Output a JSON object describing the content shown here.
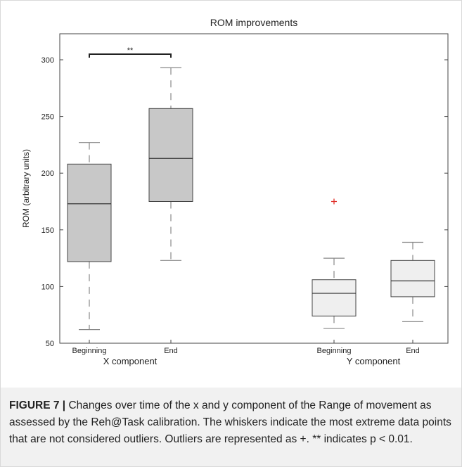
{
  "chart_data": {
    "type": "box",
    "title": "ROM improvements",
    "ylabel": "ROM (arbitrary units)",
    "xlabel": "",
    "ylim": [
      50,
      320
    ],
    "yticks": [
      50,
      100,
      150,
      200,
      250,
      300
    ],
    "grid": false,
    "groups": [
      {
        "name": "X component",
        "boxes": [
          {
            "label": "Beginning",
            "whisker_low": 62,
            "q1": 122,
            "median": 173,
            "q3": 208,
            "whisker_high": 227,
            "outliers": [],
            "fill": "#c8c8c8"
          },
          {
            "label": "End",
            "whisker_low": 123,
            "q1": 175,
            "median": 213,
            "q3": 257,
            "whisker_high": 293,
            "outliers": [],
            "fill": "#c8c8c8"
          }
        ]
      },
      {
        "name": "Y component",
        "boxes": [
          {
            "label": "Beginning",
            "whisker_low": 63,
            "q1": 74,
            "median": 94,
            "q3": 106,
            "whisker_high": 125,
            "outliers": [
              175
            ],
            "fill": "#efefef"
          },
          {
            "label": "End",
            "whisker_low": 69,
            "q1": 91,
            "median": 105,
            "q3": 123,
            "whisker_high": 139,
            "outliers": [],
            "fill": "#efefef"
          }
        ]
      }
    ],
    "annotations": [
      {
        "text": "**",
        "between": [
          "X component Beginning",
          "X component End"
        ],
        "y": 305
      }
    ],
    "colors": {
      "outlier": "#e0302a",
      "box_stroke": "#444444",
      "whisker": "#888888"
    }
  },
  "caption": {
    "label": "FIGURE 7 |",
    "text": " Changes over time of the x and y component of the Range of movement as assessed by the Reh@Task calibration. The whiskers indicate the most extreme data points that are not considered outliers. Outliers are represented as +. ** indicates p < 0.01."
  }
}
